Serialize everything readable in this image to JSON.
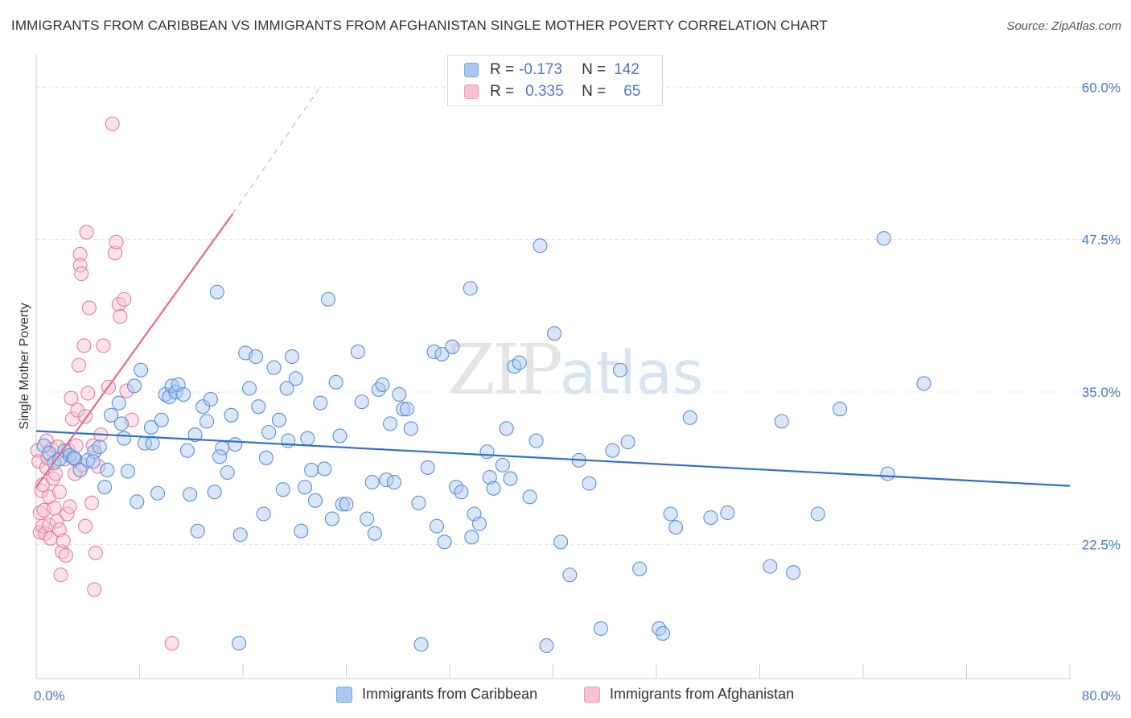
{
  "title": "IMMIGRANTS FROM CARIBBEAN VS IMMIGRANTS FROM AFGHANISTAN SINGLE MOTHER POVERTY CORRELATION CHART",
  "source": "Source: ZipAtlas.com",
  "watermark": {
    "zip": "ZIP",
    "atlas": "atlas"
  },
  "legend": {
    "rows": [
      {
        "r_label": "R =",
        "r_value": "-0.173",
        "n_label": "N =",
        "n_value": "142",
        "color": "#a9c8f0",
        "border": "#7aa6e0"
      },
      {
        "r_label": "R =",
        "r_value": "0.335",
        "n_label": "N =",
        "n_value": "65",
        "color": "#f8c0d2",
        "border": "#ee9ab5"
      }
    ]
  },
  "bottom_legend": [
    {
      "label": "Immigrants from Caribbean",
      "color": "#a9c8f0",
      "border": "#7aa6e0"
    },
    {
      "label": "Immigrants from Afghanistan",
      "color": "#f8c0d2",
      "border": "#ee9ab5"
    }
  ],
  "chart_data": {
    "type": "scatter",
    "title": "IMMIGRANTS FROM CARIBBEAN VS IMMIGRANTS FROM AFGHANISTAN SINGLE MOTHER POVERTY CORRELATION CHART",
    "xlabel": "",
    "ylabel": "Single Mother Poverty",
    "xlim": [
      0,
      80
    ],
    "ylim": [
      11.5,
      62
    ],
    "x_tick_labels": [
      "0.0%",
      "80.0%"
    ],
    "y_ticks": [
      22.5,
      35.0,
      47.5,
      60.0
    ],
    "y_tick_labels": [
      "22.5%",
      "35.0%",
      "47.5%",
      "60.0%"
    ],
    "grid": true,
    "colors": {
      "caribbean": "#5b8fd8",
      "afghanistan": "#ec7aa0",
      "caribbean_line": "#2f6fca",
      "afghanistan_line": "#e56a96"
    },
    "series": [
      {
        "name": "Immigrants from Caribbean",
        "r": -0.173,
        "n": 142,
        "trend": {
          "x": [
            0,
            80
          ],
          "y": [
            31.8,
            27.3
          ]
        },
        "points": [
          [
            0.6,
            30.6
          ],
          [
            1.0,
            30.0
          ],
          [
            1.4,
            29.2
          ],
          [
            1.8,
            29.5
          ],
          [
            2.2,
            30.2
          ],
          [
            2.6,
            29.8
          ],
          [
            3.0,
            29.5
          ],
          [
            3.4,
            28.6
          ],
          [
            4.0,
            29.4
          ],
          [
            4.5,
            30.1
          ],
          [
            4.9,
            30.5
          ],
          [
            5.3,
            27.2
          ],
          [
            5.5,
            28.6
          ],
          [
            5.8,
            33.1
          ],
          [
            6.4,
            34.1
          ],
          [
            6.8,
            31.2
          ],
          [
            7.1,
            28.5
          ],
          [
            7.6,
            35.5
          ],
          [
            7.8,
            26.0
          ],
          [
            8.1,
            36.8
          ],
          [
            8.4,
            30.8
          ],
          [
            8.9,
            32.1
          ],
          [
            9.0,
            30.8
          ],
          [
            9.4,
            26.7
          ],
          [
            9.7,
            32.7
          ],
          [
            10.0,
            34.8
          ],
          [
            10.3,
            34.6
          ],
          [
            10.5,
            35.5
          ],
          [
            10.8,
            35.0
          ],
          [
            11.0,
            35.6
          ],
          [
            11.4,
            34.8
          ],
          [
            11.7,
            30.2
          ],
          [
            11.9,
            26.6
          ],
          [
            12.3,
            31.5
          ],
          [
            12.5,
            23.6
          ],
          [
            12.9,
            33.8
          ],
          [
            13.2,
            32.6
          ],
          [
            13.5,
            34.4
          ],
          [
            13.8,
            26.8
          ],
          [
            14.0,
            43.2
          ],
          [
            14.4,
            30.4
          ],
          [
            14.8,
            28.4
          ],
          [
            15.1,
            33.1
          ],
          [
            15.4,
            30.7
          ],
          [
            15.8,
            23.3
          ],
          [
            16.2,
            38.2
          ],
          [
            16.5,
            35.3
          ],
          [
            17.0,
            37.9
          ],
          [
            17.2,
            33.8
          ],
          [
            17.6,
            25.0
          ],
          [
            17.8,
            29.6
          ],
          [
            18.0,
            31.7
          ],
          [
            18.4,
            37.0
          ],
          [
            18.8,
            32.7
          ],
          [
            19.1,
            27.0
          ],
          [
            19.4,
            35.3
          ],
          [
            19.8,
            37.9
          ],
          [
            20.1,
            36.1
          ],
          [
            20.5,
            23.6
          ],
          [
            20.8,
            27.2
          ],
          [
            21.0,
            31.2
          ],
          [
            21.3,
            28.6
          ],
          [
            21.6,
            26.1
          ],
          [
            22.0,
            34.1
          ],
          [
            22.3,
            28.7
          ],
          [
            22.6,
            42.6
          ],
          [
            22.9,
            24.6
          ],
          [
            23.2,
            35.8
          ],
          [
            23.5,
            31.4
          ],
          [
            23.7,
            25.8
          ],
          [
            24.0,
            25.8
          ],
          [
            24.9,
            38.3
          ],
          [
            25.2,
            34.2
          ],
          [
            25.6,
            24.6
          ],
          [
            26.0,
            27.6
          ],
          [
            26.2,
            23.4
          ],
          [
            26.5,
            35.2
          ],
          [
            26.8,
            35.6
          ],
          [
            27.1,
            27.8
          ],
          [
            27.4,
            32.4
          ],
          [
            27.7,
            27.6
          ],
          [
            28.1,
            34.8
          ],
          [
            28.4,
            33.6
          ],
          [
            28.7,
            33.6
          ],
          [
            29.0,
            32.0
          ],
          [
            29.6,
            25.9
          ],
          [
            30.3,
            28.8
          ],
          [
            30.8,
            38.3
          ],
          [
            31.0,
            24.0
          ],
          [
            31.4,
            38.1
          ],
          [
            31.6,
            22.7
          ],
          [
            32.2,
            38.7
          ],
          [
            32.5,
            27.2
          ],
          [
            32.9,
            26.8
          ],
          [
            33.6,
            43.5
          ],
          [
            33.9,
            25.0
          ],
          [
            34.3,
            24.2
          ],
          [
            34.9,
            30.1
          ],
          [
            35.1,
            28.0
          ],
          [
            35.4,
            27.1
          ],
          [
            36.1,
            29.0
          ],
          [
            36.4,
            32.0
          ],
          [
            36.7,
            27.9
          ],
          [
            37.0,
            37.1
          ],
          [
            37.4,
            37.4
          ],
          [
            38.2,
            26.4
          ],
          [
            38.7,
            31.0
          ],
          [
            39.0,
            47.0
          ],
          [
            39.5,
            14.2
          ],
          [
            40.1,
            39.8
          ],
          [
            40.6,
            22.7
          ],
          [
            41.3,
            20.0
          ],
          [
            42.0,
            29.4
          ],
          [
            43.7,
            15.6
          ],
          [
            44.6,
            30.2
          ],
          [
            45.2,
            36.8
          ],
          [
            45.8,
            30.9
          ],
          [
            46.7,
            20.5
          ],
          [
            48.2,
            15.6
          ],
          [
            48.5,
            15.2
          ],
          [
            49.1,
            25.0
          ],
          [
            49.5,
            23.9
          ],
          [
            50.6,
            32.9
          ],
          [
            52.2,
            24.7
          ],
          [
            53.5,
            25.1
          ],
          [
            56.8,
            20.7
          ],
          [
            57.7,
            32.6
          ],
          [
            58.6,
            20.2
          ],
          [
            60.5,
            25.0
          ],
          [
            62.2,
            33.6
          ],
          [
            65.6,
            47.6
          ],
          [
            65.9,
            28.3
          ],
          [
            68.7,
            35.7
          ],
          [
            14.2,
            29.7
          ],
          [
            19.5,
            31.0
          ],
          [
            15.7,
            14.4
          ],
          [
            2.9,
            29.6
          ],
          [
            4.4,
            29.3
          ],
          [
            6.6,
            32.4
          ],
          [
            33.7,
            23.1
          ],
          [
            29.8,
            14.3
          ],
          [
            42.8,
            27.5
          ]
        ]
      },
      {
        "name": "Immigrants from Afghanistan",
        "r": 0.335,
        "n": 65,
        "trend": {
          "x": [
            0.0,
            15.2
          ],
          "y": [
            27.2,
            49.6
          ]
        },
        "trend_extension": {
          "x": [
            15.2,
            22.1
          ],
          "y": [
            49.6,
            60.2
          ]
        },
        "points": [
          [
            0.1,
            30.2
          ],
          [
            0.2,
            29.3
          ],
          [
            0.3,
            25.1
          ],
          [
            0.3,
            23.5
          ],
          [
            0.4,
            26.9
          ],
          [
            0.5,
            27.4
          ],
          [
            0.5,
            24.0
          ],
          [
            0.6,
            25.3
          ],
          [
            0.7,
            23.4
          ],
          [
            0.8,
            28.8
          ],
          [
            0.8,
            31.0
          ],
          [
            0.9,
            29.6
          ],
          [
            1.0,
            24.1
          ],
          [
            1.0,
            26.4
          ],
          [
            1.1,
            23.0
          ],
          [
            1.2,
            30.3
          ],
          [
            1.3,
            27.9
          ],
          [
            1.4,
            25.5
          ],
          [
            1.5,
            28.3
          ],
          [
            1.6,
            24.4
          ],
          [
            1.7,
            30.5
          ],
          [
            1.8,
            26.8
          ],
          [
            1.8,
            23.7
          ],
          [
            1.9,
            20.0
          ],
          [
            2.0,
            21.9
          ],
          [
            2.1,
            22.8
          ],
          [
            2.2,
            29.5
          ],
          [
            2.3,
            21.6
          ],
          [
            2.4,
            25.0
          ],
          [
            2.5,
            30.2
          ],
          [
            2.6,
            25.6
          ],
          [
            2.7,
            34.5
          ],
          [
            2.8,
            32.8
          ],
          [
            2.9,
            29.6
          ],
          [
            3.0,
            28.3
          ],
          [
            3.1,
            30.6
          ],
          [
            3.2,
            33.5
          ],
          [
            3.3,
            37.2
          ],
          [
            3.4,
            46.3
          ],
          [
            3.4,
            45.4
          ],
          [
            3.5,
            44.7
          ],
          [
            3.6,
            29.0
          ],
          [
            3.7,
            38.8
          ],
          [
            3.8,
            24.0
          ],
          [
            3.9,
            48.1
          ],
          [
            4.0,
            34.9
          ],
          [
            4.1,
            41.9
          ],
          [
            4.3,
            25.9
          ],
          [
            4.4,
            30.6
          ],
          [
            4.5,
            18.8
          ],
          [
            4.6,
            21.8
          ],
          [
            4.8,
            28.9
          ],
          [
            5.0,
            31.5
          ],
          [
            5.2,
            38.8
          ],
          [
            5.6,
            35.4
          ],
          [
            5.9,
            57.0
          ],
          [
            6.1,
            46.4
          ],
          [
            6.2,
            47.3
          ],
          [
            6.4,
            42.2
          ],
          [
            6.5,
            41.2
          ],
          [
            6.8,
            42.6
          ],
          [
            7.0,
            35.1
          ],
          [
            7.4,
            32.7
          ],
          [
            10.5,
            14.4
          ],
          [
            3.8,
            33.0
          ]
        ]
      }
    ]
  }
}
